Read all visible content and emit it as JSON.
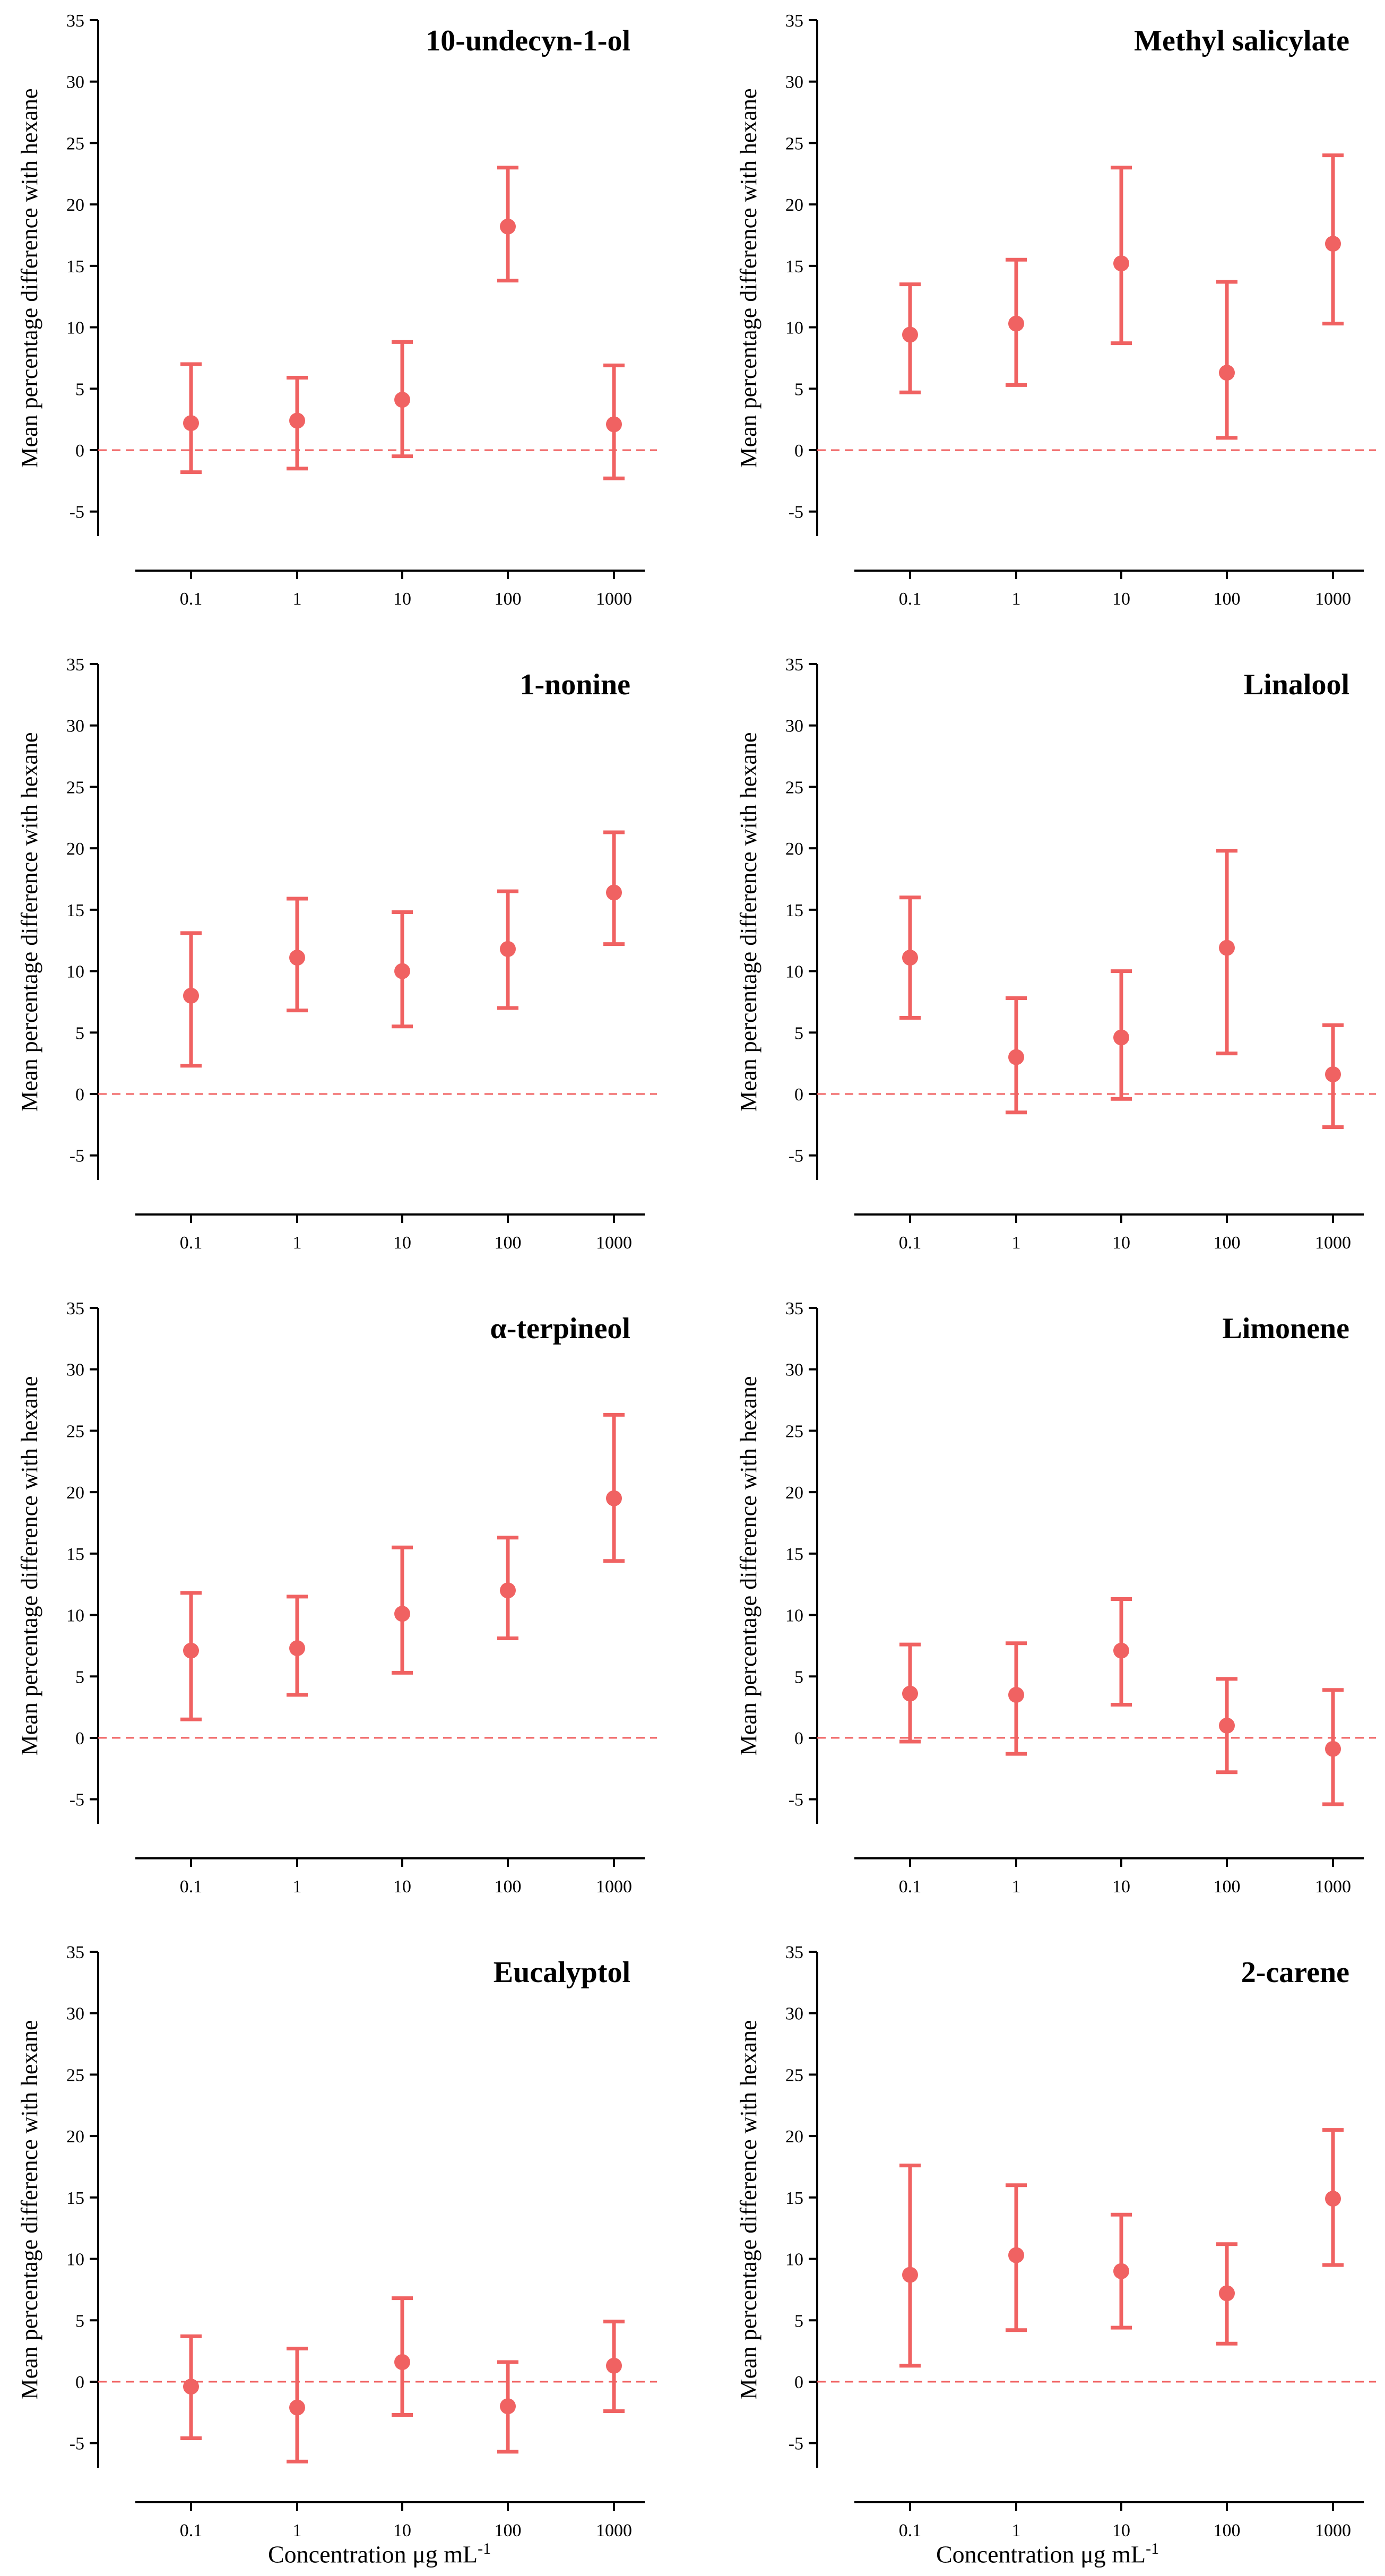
{
  "figure": {
    "xlabel_text": "Concentration μg mL",
    "xlabel_superscript": "-1",
    "accent_color": "#F06262"
  },
  "chart_data": [
    {
      "type": "scatter",
      "title": "10-undecyn-1-ol",
      "ylabel": "Mean percentage difference with hexane",
      "xlabel": "",
      "categories": [
        "0.1",
        "1",
        "10",
        "100",
        "1000"
      ],
      "values": [
        2.2,
        2.4,
        4.1,
        18.2,
        2.1
      ],
      "error_low": [
        -1.8,
        -1.5,
        -0.5,
        13.8,
        -2.3
      ],
      "error_high": [
        7.0,
        5.9,
        8.8,
        23.0,
        6.9
      ],
      "yticks": [
        "35",
        "30",
        "25",
        "20",
        "15",
        "10",
        "5",
        "0",
        "-5"
      ],
      "ylim": [
        -7,
        35
      ],
      "reference_line": 0
    },
    {
      "type": "scatter",
      "title": "Methyl salicylate",
      "ylabel": "Mean percentage difference with hexane",
      "xlabel": "",
      "categories": [
        "0.1",
        "1",
        "10",
        "100",
        "1000"
      ],
      "values": [
        9.4,
        10.3,
        15.2,
        6.3,
        16.8
      ],
      "error_low": [
        4.7,
        5.3,
        8.7,
        1.0,
        10.3
      ],
      "error_high": [
        13.5,
        15.5,
        23.0,
        13.7,
        24.0
      ],
      "yticks": [
        "35",
        "30",
        "25",
        "20",
        "15",
        "10",
        "5",
        "0",
        "-5"
      ],
      "ylim": [
        -7,
        35
      ],
      "reference_line": 0
    },
    {
      "type": "scatter",
      "title": "1-nonine",
      "ylabel": "Mean percentage difference with hexane",
      "xlabel": "",
      "categories": [
        "0.1",
        "1",
        "10",
        "100",
        "1000"
      ],
      "values": [
        8.0,
        11.1,
        10.0,
        11.8,
        16.4
      ],
      "error_low": [
        2.3,
        6.8,
        5.5,
        7.0,
        12.2
      ],
      "error_high": [
        13.1,
        15.9,
        14.8,
        16.5,
        21.3
      ],
      "yticks": [
        "35",
        "30",
        "25",
        "20",
        "15",
        "10",
        "5",
        "0",
        "-5"
      ],
      "ylim": [
        -7,
        35
      ],
      "reference_line": 0
    },
    {
      "type": "scatter",
      "title": "Linalool",
      "ylabel": "Mean percentage difference with hexane",
      "xlabel": "",
      "categories": [
        "0.1",
        "1",
        "10",
        "100",
        "1000"
      ],
      "values": [
        11.1,
        3.0,
        4.6,
        11.9,
        1.6
      ],
      "error_low": [
        6.2,
        -1.5,
        -0.4,
        3.3,
        -2.7
      ],
      "error_high": [
        16.0,
        7.8,
        10.0,
        19.8,
        5.6
      ],
      "yticks": [
        "35",
        "30",
        "25",
        "20",
        "15",
        "10",
        "5",
        "0",
        "-5"
      ],
      "ylim": [
        -7,
        35
      ],
      "reference_line": 0
    },
    {
      "type": "scatter",
      "title": "α-terpineol",
      "ylabel": "Mean percentage difference with hexane",
      "xlabel": "",
      "categories": [
        "0.1",
        "1",
        "10",
        "100",
        "1000"
      ],
      "values": [
        7.1,
        7.3,
        10.1,
        12.0,
        19.5
      ],
      "error_low": [
        1.5,
        3.5,
        5.3,
        8.1,
        14.4
      ],
      "error_high": [
        11.8,
        11.5,
        15.5,
        16.3,
        26.3
      ],
      "yticks": [
        "35",
        "30",
        "25",
        "20",
        "15",
        "10",
        "5",
        "0",
        "-5"
      ],
      "ylim": [
        -7,
        35
      ],
      "reference_line": 0
    },
    {
      "type": "scatter",
      "title": "Limonene",
      "ylabel": "Mean percentage difference with hexane",
      "xlabel": "",
      "categories": [
        "0.1",
        "1",
        "10",
        "100",
        "1000"
      ],
      "values": [
        3.6,
        3.5,
        7.1,
        1.0,
        -0.9
      ],
      "error_low": [
        -0.3,
        -1.3,
        2.7,
        -2.8,
        -5.4
      ],
      "error_high": [
        7.6,
        7.7,
        11.3,
        4.8,
        3.9
      ],
      "yticks": [
        "35",
        "30",
        "25",
        "20",
        "15",
        "10",
        "5",
        "0",
        "-5"
      ],
      "ylim": [
        -7,
        35
      ],
      "reference_line": 0
    },
    {
      "type": "scatter",
      "title": "Eucalyptol",
      "ylabel": "Mean percentage difference with hexane",
      "xlabel": "Concentration μg mL-1",
      "categories": [
        "0.1",
        "1",
        "10",
        "100",
        "1000"
      ],
      "values": [
        -0.4,
        -2.1,
        1.6,
        -2.0,
        1.3
      ],
      "error_low": [
        -4.6,
        -6.5,
        -2.7,
        -5.7,
        -2.4
      ],
      "error_high": [
        3.7,
        2.7,
        6.8,
        1.6,
        4.9
      ],
      "yticks": [
        "35",
        "30",
        "25",
        "20",
        "15",
        "10",
        "5",
        "0",
        "-5"
      ],
      "ylim": [
        -7,
        35
      ],
      "reference_line": 0
    },
    {
      "type": "scatter",
      "title": "2-carene",
      "ylabel": "Mean percentage difference with hexane",
      "xlabel": "Concentration μg mL-1",
      "categories": [
        "0.1",
        "1",
        "10",
        "100",
        "1000"
      ],
      "values": [
        8.7,
        10.3,
        9.0,
        7.2,
        14.9
      ],
      "error_low": [
        1.3,
        4.2,
        4.4,
        3.1,
        9.5
      ],
      "error_high": [
        17.6,
        16.0,
        13.6,
        11.2,
        20.5
      ],
      "yticks": [
        "35",
        "30",
        "25",
        "20",
        "15",
        "10",
        "5",
        "0",
        "-5"
      ],
      "ylim": [
        -7,
        35
      ],
      "reference_line": 0
    }
  ]
}
